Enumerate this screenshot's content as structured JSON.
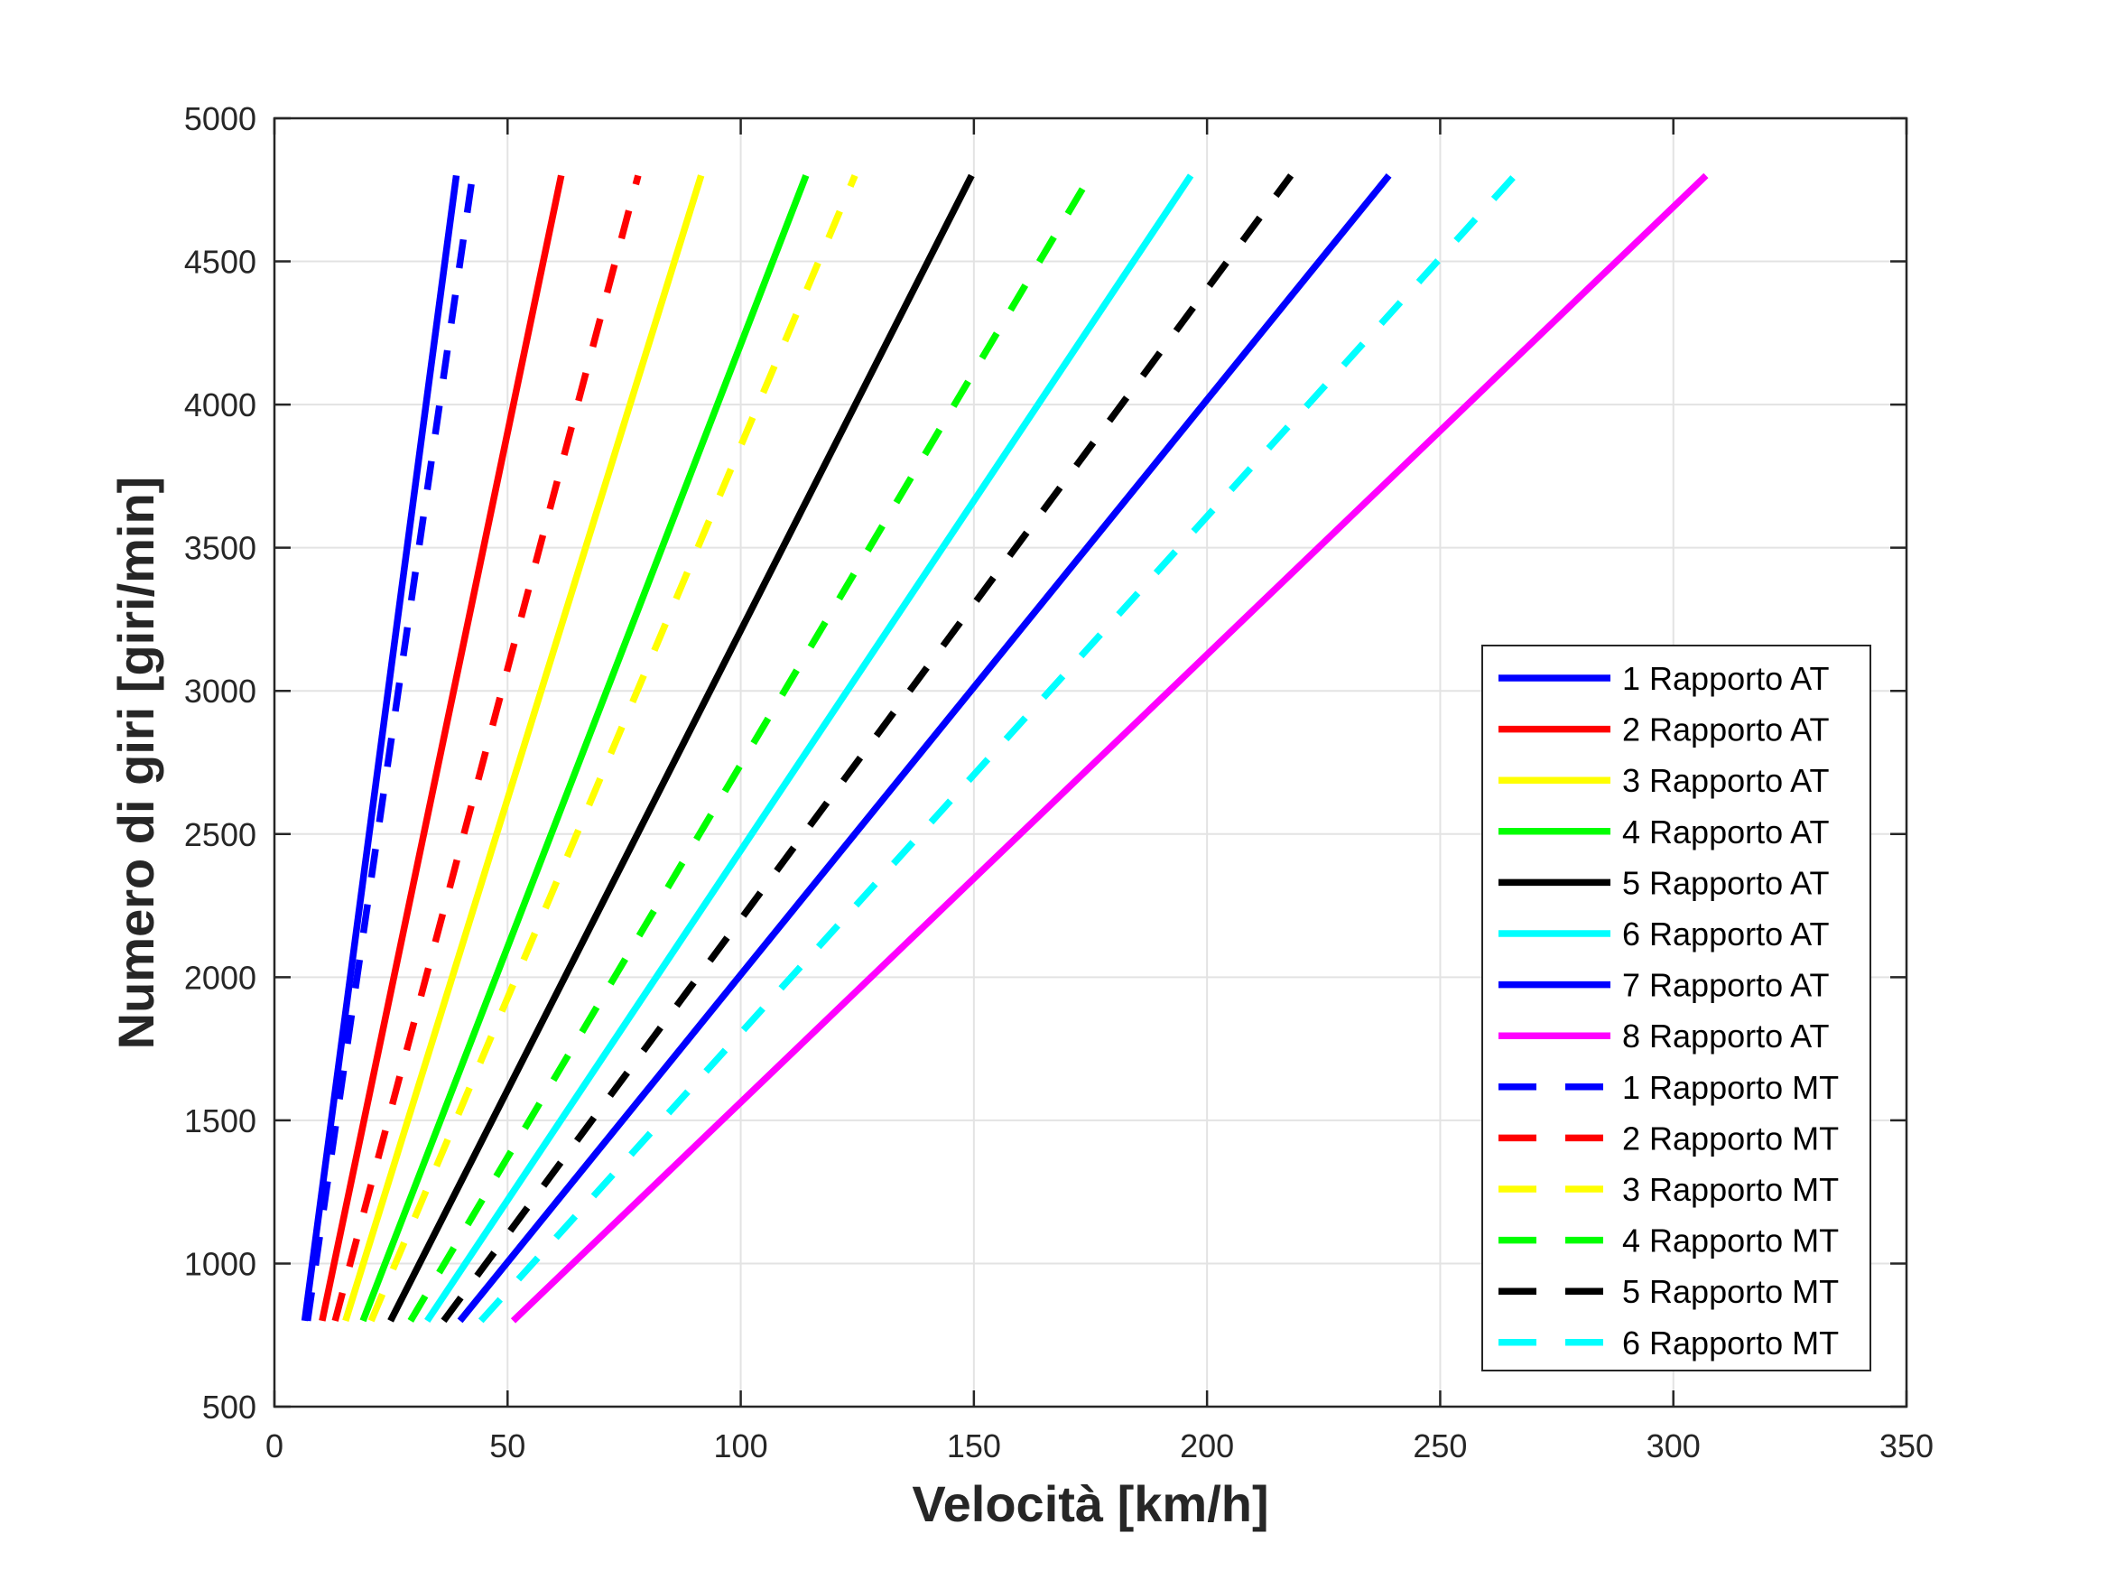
{
  "chart_data": {
    "type": "line",
    "title": "",
    "xlabel": "Velocità [km/h]",
    "ylabel": "Numero di giri [giri/min]",
    "xlim": [
      0,
      350
    ],
    "ylim": [
      500,
      5000
    ],
    "xticks": [
      0,
      50,
      100,
      150,
      200,
      250,
      300,
      350
    ],
    "yticks": [
      500,
      1000,
      1500,
      2000,
      2500,
      3000,
      3500,
      4000,
      4500,
      5000
    ],
    "xtick_labels": [
      "0",
      "50",
      "100",
      "150",
      "200",
      "250",
      "300",
      "350"
    ],
    "ytick_labels": [
      "500",
      "1000",
      "1500",
      "2000",
      "2500",
      "3000",
      "3500",
      "4000",
      "4500",
      "5000"
    ],
    "grid": true,
    "legend_position": "bottom-right",
    "series": [
      {
        "name": "1 Rapporto AT",
        "color": "#0000ff",
        "style": "solid",
        "x": [
          6.5,
          39.0
        ],
        "y": [
          800,
          4800
        ]
      },
      {
        "name": "2 Rapporto AT",
        "color": "#ff0000",
        "style": "solid",
        "x": [
          10.25,
          61.5
        ],
        "y": [
          800,
          4800
        ]
      },
      {
        "name": "3 Rapporto AT",
        "color": "#ffff00",
        "style": "solid",
        "x": [
          15.25,
          91.5
        ],
        "y": [
          800,
          4800
        ]
      },
      {
        "name": "4 Rapporto AT",
        "color": "#00ff00",
        "style": "solid",
        "x": [
          19.0,
          114.0
        ],
        "y": [
          800,
          4800
        ]
      },
      {
        "name": "5 Rapporto AT",
        "color": "#000000",
        "style": "solid",
        "x": [
          24.9,
          149.5
        ],
        "y": [
          800,
          4800
        ]
      },
      {
        "name": "6 Rapporto AT",
        "color": "#00ffff",
        "style": "solid",
        "x": [
          32.75,
          196.5
        ],
        "y": [
          800,
          4800
        ]
      },
      {
        "name": "7 Rapporto AT",
        "color": "#0000ff",
        "style": "solid",
        "x": [
          39.8,
          239.0
        ],
        "y": [
          800,
          4800
        ]
      },
      {
        "name": "8 Rapporto AT",
        "color": "#ff00ff",
        "style": "solid",
        "x": [
          51.2,
          307.0
        ],
        "y": [
          800,
          4800
        ]
      },
      {
        "name": "1 Rapporto MT",
        "color": "#0000ff",
        "style": "dashed",
        "x": [
          7.1,
          42.5
        ],
        "y": [
          800,
          4800
        ]
      },
      {
        "name": "2 Rapporto MT",
        "color": "#ff0000",
        "style": "dashed",
        "x": [
          13.0,
          78.0
        ],
        "y": [
          800,
          4800
        ]
      },
      {
        "name": "3 Rapporto MT",
        "color": "#ffff00",
        "style": "dashed",
        "x": [
          20.75,
          124.5
        ],
        "y": [
          800,
          4800
        ]
      },
      {
        "name": "4 Rapporto MT",
        "color": "#00ff00",
        "style": "dashed",
        "x": [
          29.2,
          175.0
        ],
        "y": [
          800,
          4800
        ]
      },
      {
        "name": "5 Rapporto MT",
        "color": "#000000",
        "style": "dashed",
        "x": [
          36.3,
          218.0
        ],
        "y": [
          800,
          4800
        ]
      },
      {
        "name": "6 Rapporto MT",
        "color": "#00ffff",
        "style": "dashed",
        "x": [
          44.3,
          266.0
        ],
        "y": [
          800,
          4800
        ]
      }
    ]
  }
}
